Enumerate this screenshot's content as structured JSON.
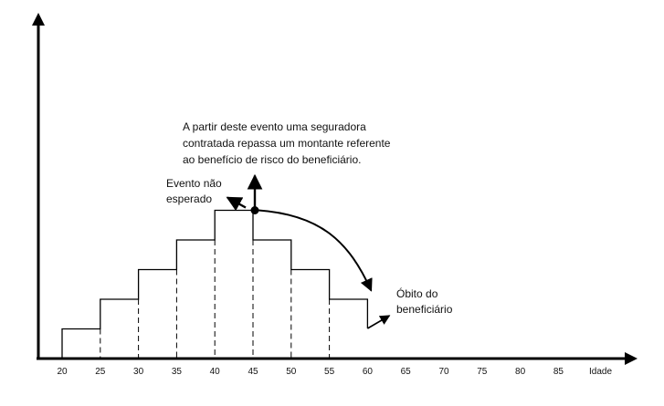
{
  "annotations": {
    "event_description": [
      "A partir deste evento uma seguradora",
      "contratada repassa um montante referente",
      "ao benefício de risco do beneficiário."
    ],
    "unexpected_event": [
      "Evento não",
      "esperado"
    ],
    "death": [
      "Óbito do",
      "beneficiário"
    ]
  },
  "chart_data": {
    "type": "line",
    "step": true,
    "xlabel": "Idade",
    "x_ticks": [
      "20",
      "25",
      "30",
      "35",
      "40",
      "45",
      "50",
      "55",
      "60",
      "65",
      "70",
      "75",
      "80",
      "85"
    ],
    "profile_x": [
      20,
      25,
      30,
      35,
      40,
      45,
      50,
      55,
      60
    ],
    "profile_level": [
      1,
      2,
      3,
      4,
      5,
      4,
      3,
      2
    ],
    "dashed_at_x": [
      25,
      30,
      35,
      40,
      45,
      50,
      55
    ],
    "event_x": 45,
    "death_x": 60,
    "grid": false,
    "legend": false
  }
}
